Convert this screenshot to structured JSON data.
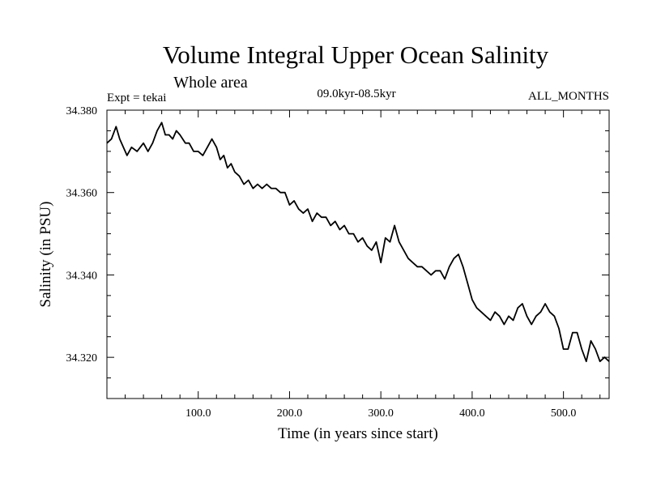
{
  "chart_data": {
    "type": "line",
    "title": "Volume Integral Upper Ocean Salinity",
    "subtitle": "Whole area",
    "experiment": "Expt = tekai",
    "period": "09.0kyr-08.5kyr",
    "months": "ALL_MONTHS",
    "xlabel": "Time (in years since start)",
    "ylabel": "Salinity (in PSU)",
    "xlim": [
      0,
      550
    ],
    "ylim": [
      34.31,
      34.38
    ],
    "x_ticks": [
      100,
      200,
      300,
      400,
      500
    ],
    "x_tick_labels": [
      "100.0",
      "200.0",
      "300.0",
      "400.0",
      "500.0"
    ],
    "y_ticks": [
      34.32,
      34.34,
      34.36,
      34.38
    ],
    "y_tick_labels": [
      "34.320",
      "34.340",
      "34.360",
      "34.380"
    ],
    "series": [
      {
        "name": "Salinity",
        "x": [
          0,
          5,
          10,
          14,
          18,
          22,
          27,
          33,
          40,
          45,
          50,
          55,
          60,
          64,
          68,
          72,
          76,
          80,
          86,
          90,
          95,
          100,
          105,
          110,
          115,
          120,
          124,
          128,
          132,
          136,
          140,
          145,
          150,
          155,
          160,
          165,
          170,
          175,
          180,
          185,
          190,
          195,
          200,
          205,
          210,
          215,
          220,
          225,
          230,
          235,
          240,
          245,
          250,
          255,
          260,
          265,
          270,
          275,
          280,
          285,
          290,
          295,
          300,
          305,
          310,
          315,
          320,
          325,
          330,
          335,
          340,
          345,
          350,
          355,
          360,
          365,
          370,
          375,
          380,
          385,
          390,
          395,
          400,
          405,
          410,
          415,
          420,
          425,
          430,
          435,
          440,
          445,
          450,
          455,
          460,
          465,
          470,
          475,
          480,
          485,
          490,
          495,
          500,
          505,
          510,
          515,
          520,
          525,
          530,
          535,
          540,
          545,
          550
        ],
        "values": [
          34.372,
          34.373,
          34.376,
          34.373,
          34.371,
          34.369,
          34.371,
          34.37,
          34.372,
          34.37,
          34.372,
          34.375,
          34.377,
          34.374,
          34.374,
          34.373,
          34.375,
          34.374,
          34.372,
          34.372,
          34.37,
          34.37,
          34.369,
          34.371,
          34.373,
          34.371,
          34.368,
          34.369,
          34.366,
          34.367,
          34.365,
          34.364,
          34.362,
          34.363,
          34.361,
          34.362,
          34.361,
          34.362,
          34.361,
          34.361,
          34.36,
          34.36,
          34.357,
          34.358,
          34.356,
          34.355,
          34.356,
          34.353,
          34.355,
          34.354,
          34.354,
          34.352,
          34.353,
          34.351,
          34.352,
          34.35,
          34.35,
          34.348,
          34.349,
          34.347,
          34.346,
          34.348,
          34.343,
          34.349,
          34.348,
          34.352,
          34.348,
          34.346,
          34.344,
          34.343,
          34.342,
          34.342,
          34.341,
          34.34,
          34.341,
          34.341,
          34.339,
          34.342,
          34.344,
          34.345,
          34.342,
          34.338,
          34.334,
          34.332,
          34.331,
          34.33,
          34.329,
          34.331,
          34.33,
          34.328,
          34.33,
          34.329,
          34.332,
          34.333,
          34.33,
          34.328,
          34.33,
          34.331,
          34.333,
          34.331,
          34.33,
          34.327,
          34.322,
          34.322,
          34.326,
          34.326,
          34.322,
          34.319,
          34.324,
          34.322,
          34.319,
          34.32,
          34.319
        ]
      }
    ]
  }
}
